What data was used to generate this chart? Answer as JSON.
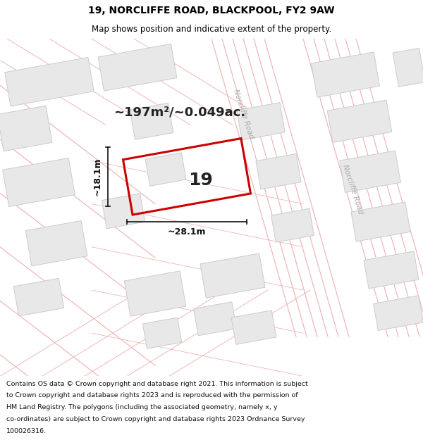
{
  "title_line1": "19, NORCLIFFE ROAD, BLACKPOOL, FY2 9AW",
  "title_line2": "Map shows position and indicative extent of the property.",
  "area_text": "~197m²/~0.049ac.",
  "property_number": "19",
  "dim_width": "~28.1m",
  "dim_height": "~18.1m",
  "road_label1": "Norcliffe Road",
  "road_label2": "Norcliffe Road",
  "footer_text": "Contains OS data © Crown copyright and database right 2021. This information is subject to Crown copyright and database rights 2023 and is reproduced with the permission of HM Land Registry. The polygons (including the associated geometry, namely x, y co-ordinates) are subject to Crown copyright and database rights 2023 Ordnance Survey 100026316.",
  "map_bg": "#ffffff",
  "block_color": "#e8e8e8",
  "block_border": "#cccccc",
  "road_line_color": "#f0b0b0",
  "property_border": "#cc0000",
  "title_bg": "#ffffff",
  "footer_bg": "#ffffff",
  "dim_color": "#111111",
  "text_color": "#222222",
  "road_label_color": "#aaaaaa"
}
